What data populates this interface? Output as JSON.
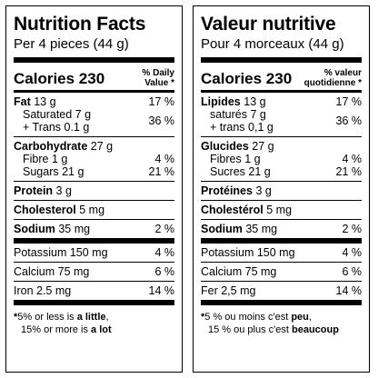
{
  "en": {
    "title": "Nutrition Facts",
    "serving": "Per 4 pieces (44 g)",
    "calories_label": "Calories 230",
    "dv_line1": "% Daily",
    "dv_line2": "Value *",
    "fat_label": "Fat",
    "fat_amount": "13 g",
    "fat_dv": "17 %",
    "sat_label": "Saturated 7 g",
    "trans_label": "+ Trans 0.1 g",
    "sat_trans_dv": "36 %",
    "carb_label": "Carbohydrate",
    "carb_amount": "27 g",
    "fibre_label": "Fibre 1 g",
    "fibre_dv": "4 %",
    "sugars_label": "Sugars 21 g",
    "sugars_dv": "21 %",
    "protein_label": "Protein",
    "protein_amount": "3 g",
    "chol_label": "Cholesterol",
    "chol_amount": "5 mg",
    "sodium_label": "Sodium",
    "sodium_amount": "35 mg",
    "sodium_dv": "2 %",
    "potassium_label": "Potassium 150 mg",
    "potassium_dv": "4 %",
    "calcium_label": "Calcium 75 mg",
    "calcium_dv": "6 %",
    "iron_label": "Iron 2.5 mg",
    "iron_dv": "14 %",
    "foot_star": "*",
    "foot_a": "5% or less is ",
    "foot_a_bold": "a little",
    "foot_a_end": ",",
    "foot_b": "15% or more is ",
    "foot_b_bold": "a lot"
  },
  "fr": {
    "title": "Valeur nutritive",
    "serving": "Pour 4 morceaux (44 g)",
    "calories_label": "Calories 230",
    "dv_line1": "% valeur",
    "dv_line2": "quotidienne *",
    "fat_label": "Lipides",
    "fat_amount": "13 g",
    "fat_dv": "17 %",
    "sat_label": "saturés 7 g",
    "trans_label": "+ trans 0,1 g",
    "sat_trans_dv": "36 %",
    "carb_label": "Glucides",
    "carb_amount": "27 g",
    "fibre_label": "Fibres 1 g",
    "fibre_dv": "4 %",
    "sugars_label": "Sucres 21 g",
    "sugars_dv": "21 %",
    "protein_label": "Protéines",
    "protein_amount": "3 g",
    "chol_label": "Cholestérol",
    "chol_amount": "5 mg",
    "sodium_label": "Sodium",
    "sodium_amount": "35 mg",
    "sodium_dv": "2 %",
    "potassium_label": "Potassium 150 mg",
    "potassium_dv": "4 %",
    "calcium_label": "Calcium 75 mg",
    "calcium_dv": "6 %",
    "iron_label": "Fer 2,5 mg",
    "iron_dv": "14 %",
    "foot_star": "*",
    "foot_a": "5 % ou moins c'est ",
    "foot_a_bold": "peu",
    "foot_a_end": ",",
    "foot_b": "15 % ou plus c'est ",
    "foot_b_bold": "beaucoup"
  }
}
